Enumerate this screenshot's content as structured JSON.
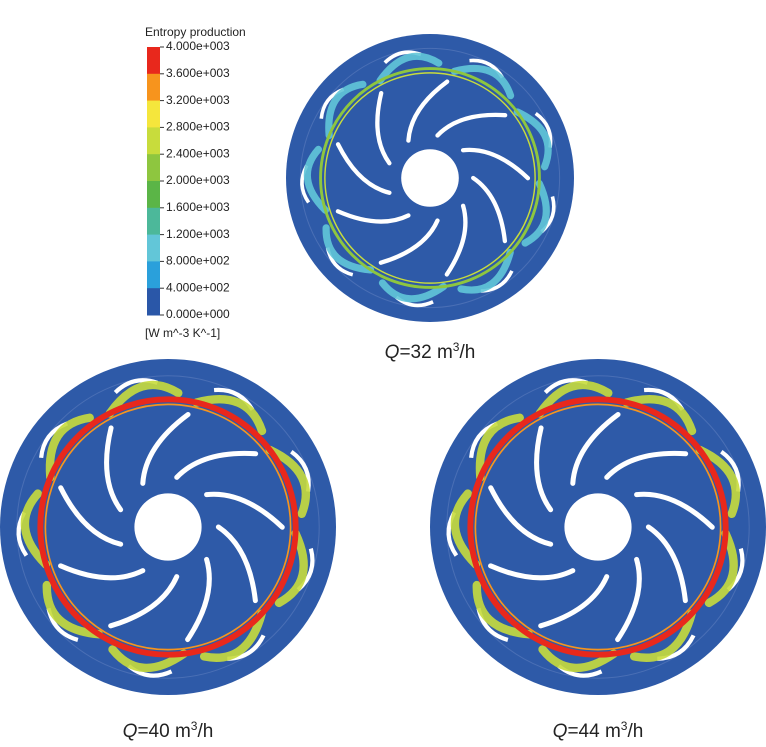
{
  "legend": {
    "title": "Entropy production",
    "labels": [
      "4.000e+003",
      "3.600e+003",
      "3.200e+003",
      "2.800e+003",
      "2.400e+003",
      "2.000e+003",
      "1.600e+003",
      "1.200e+003",
      "8.000e+002",
      "4.000e+002",
      "0.000e+000"
    ],
    "colors": [
      "#e8281c",
      "#f7941d",
      "#f5e63c",
      "#c8dc3c",
      "#8ec63f",
      "#5bb547",
      "#4cb89a",
      "#62c6d8",
      "#2aa0db",
      "#2a57a8"
    ],
    "unit": "[W m^-3 K^-1]"
  },
  "panels": [
    {
      "caption": {
        "symbol": "Q",
        "text": "=32 m",
        "sup": "3",
        "end": "/h"
      }
    },
    {
      "caption": {
        "symbol": "Q",
        "text": "=40 m",
        "sup": "3",
        "end": "/h"
      }
    },
    {
      "caption": {
        "symbol": "Q",
        "text": "=44 m",
        "sup": "3",
        "end": "/h"
      }
    }
  ]
}
